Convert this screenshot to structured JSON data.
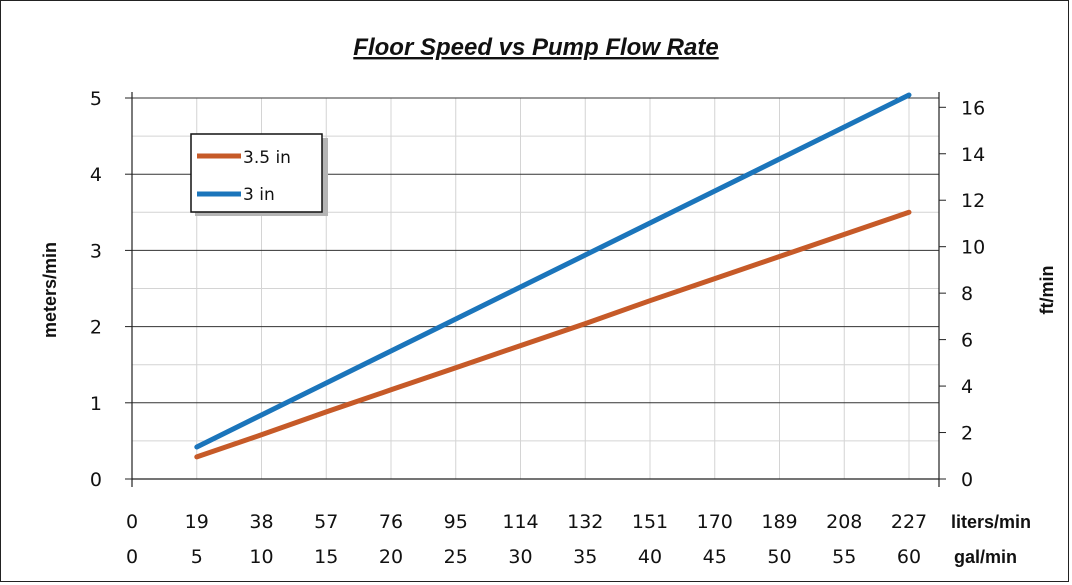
{
  "chart_data": {
    "type": "line",
    "title": "Floor Speed vs Pump Flow Rate",
    "x_gal_min": [
      5,
      10,
      15,
      20,
      25,
      30,
      35,
      40,
      45,
      50,
      55,
      60
    ],
    "x_ticks_liters": [
      "0",
      "19",
      "38",
      "57",
      "76",
      "95",
      "114",
      "132",
      "151",
      "170",
      "189",
      "208",
      "227"
    ],
    "x_ticks_gal": [
      "0",
      "5",
      "10",
      "15",
      "20",
      "25",
      "30",
      "35",
      "40",
      "45",
      "50",
      "55",
      "60"
    ],
    "x_label_liters": "liters/min",
    "x_label_gal": "gal/min",
    "ylabel_left": "meters/min",
    "ylabel_right": "ft/min",
    "ylim_left": [
      0,
      5
    ],
    "y_ticks_left": [
      "0",
      "1",
      "2",
      "3",
      "4",
      "5"
    ],
    "ylim_right": [
      0,
      16.4
    ],
    "y_ticks_right": [
      "0",
      "2",
      "4",
      "6",
      "8",
      "10",
      "12",
      "14",
      "16"
    ],
    "series": [
      {
        "name": "3.5 in",
        "color": "#C65A28",
        "values": [
          0.29,
          0.58,
          0.88,
          1.17,
          1.46,
          1.75,
          2.04,
          2.34,
          2.63,
          2.92,
          3.21,
          3.5
        ]
      },
      {
        "name": "3 in",
        "color": "#1B75BB",
        "values": [
          0.42,
          0.84,
          1.26,
          1.68,
          2.1,
          2.52,
          2.94,
          3.36,
          3.78,
          4.2,
          4.62,
          5.04
        ]
      }
    ],
    "grid": true,
    "legend_position": "top-left"
  }
}
